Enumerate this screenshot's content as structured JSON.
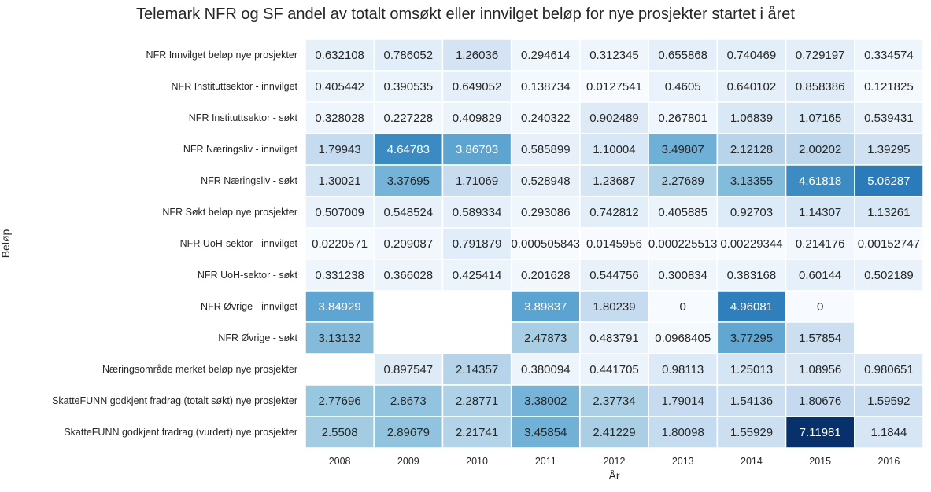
{
  "chart_data": {
    "type": "heatmap",
    "title": "Telemark NFR og SF andel av totalt omsøkt eller innvilget beløp for nye prosjekter startet i året",
    "xlabel": "År",
    "ylabel": "Beløp",
    "x_categories": [
      "2008",
      "2009",
      "2010",
      "2011",
      "2012",
      "2013",
      "2014",
      "2015",
      "2016"
    ],
    "y_categories": [
      "NFR Innvilget beløp nye prosjekter",
      "NFR Instituttsektor - innvilget",
      "NFR Instituttsektor - søkt",
      "NFR Næringsliv - innvilget",
      "NFR Næringsliv - søkt",
      "NFR Søkt beløp nye prosjekter",
      "NFR UoH-sektor - innvilget",
      "NFR UoH-sektor - søkt",
      "NFR Øvrige - innvilget",
      "NFR Øvrige - søkt",
      "Næringsområde merket beløp nye prosjekter",
      "SkatteFUNN godkjent fradrag (totalt søkt) nye prosjekter",
      "SkatteFUNN godkjent fradrag (vurdert) nye prosjekter"
    ],
    "values": [
      [
        0.632108,
        0.786052,
        1.26036,
        0.294614,
        0.312345,
        0.655868,
        0.740469,
        0.729197,
        0.334574
      ],
      [
        0.405442,
        0.390535,
        0.649052,
        0.138734,
        0.0127541,
        0.4605,
        0.640102,
        0.858386,
        0.121825
      ],
      [
        0.328028,
        0.227228,
        0.409829,
        0.240322,
        0.902489,
        0.267801,
        1.06839,
        1.07165,
        0.539431
      ],
      [
        1.79943,
        4.64783,
        3.86703,
        0.585899,
        1.10004,
        3.49807,
        2.12128,
        2.00202,
        1.39295
      ],
      [
        1.30021,
        3.37695,
        1.71069,
        0.528948,
        1.23687,
        2.27689,
        3.13355,
        4.61818,
        5.06287
      ],
      [
        0.507009,
        0.548524,
        0.589334,
        0.293086,
        0.742812,
        0.405885,
        0.92703,
        1.14307,
        1.13261
      ],
      [
        0.0220571,
        0.209087,
        0.791879,
        0.000505843,
        0.0145956,
        0.000225513,
        0.00229344,
        0.214176,
        0.00152747
      ],
      [
        0.331238,
        0.366028,
        0.425414,
        0.201628,
        0.544756,
        0.300834,
        0.383168,
        0.60144,
        0.502189
      ],
      [
        3.84929,
        null,
        null,
        3.89837,
        1.80239,
        0,
        4.96081,
        0,
        null
      ],
      [
        3.13132,
        null,
        null,
        2.47873,
        0.483791,
        0.0968405,
        3.77295,
        1.57854,
        null
      ],
      [
        null,
        0.897547,
        2.14357,
        0.380094,
        0.441705,
        0.98113,
        1.25013,
        1.08956,
        0.980651
      ],
      [
        2.77696,
        2.8673,
        2.28771,
        3.38002,
        2.37734,
        1.79014,
        1.54136,
        1.80676,
        1.59592
      ],
      [
        2.5508,
        2.89679,
        2.21741,
        3.45854,
        2.41229,
        1.80098,
        1.55929,
        7.11981,
        1.1844
      ]
    ],
    "labels": [
      [
        "0.632108",
        "0.786052",
        "1.26036",
        "0.294614",
        "0.312345",
        "0.655868",
        "0.740469",
        "0.729197",
        "0.334574"
      ],
      [
        "0.405442",
        "0.390535",
        "0.649052",
        "0.138734",
        "0.0127541",
        "0.4605",
        "0.640102",
        "0.858386",
        "0.121825"
      ],
      [
        "0.328028",
        "0.227228",
        "0.409829",
        "0.240322",
        "0.902489",
        "0.267801",
        "1.06839",
        "1.07165",
        "0.539431"
      ],
      [
        "1.79943",
        "4.64783",
        "3.86703",
        "0.585899",
        "1.10004",
        "3.49807",
        "2.12128",
        "2.00202",
        "1.39295"
      ],
      [
        "1.30021",
        "3.37695",
        "1.71069",
        "0.528948",
        "1.23687",
        "2.27689",
        "3.13355",
        "4.61818",
        "5.06287"
      ],
      [
        "0.507009",
        "0.548524",
        "0.589334",
        "0.293086",
        "0.742812",
        "0.405885",
        "0.92703",
        "1.14307",
        "1.13261"
      ],
      [
        "0.0220571",
        "0.209087",
        "0.791879",
        "0.000505843",
        "0.0145956",
        "0.000225513",
        "0.00229344",
        "0.214176",
        "0.00152747"
      ],
      [
        "0.331238",
        "0.366028",
        "0.425414",
        "0.201628",
        "0.544756",
        "0.300834",
        "0.383168",
        "0.60144",
        "0.502189"
      ],
      [
        "3.84929",
        "",
        "",
        "3.89837",
        "1.80239",
        "0",
        "4.96081",
        "0",
        ""
      ],
      [
        "3.13132",
        "",
        "",
        "2.47873",
        "0.483791",
        "0.0968405",
        "3.77295",
        "1.57854",
        ""
      ],
      [
        "",
        "0.897547",
        "2.14357",
        "0.380094",
        "0.441705",
        "0.98113",
        "1.25013",
        "1.08956",
        "0.980651"
      ],
      [
        "2.77696",
        "2.8673",
        "2.28771",
        "3.38002",
        "2.37734",
        "1.79014",
        "1.54136",
        "1.80676",
        "1.59592"
      ],
      [
        "2.5508",
        "2.89679",
        "2.21741",
        "3.45854",
        "2.41229",
        "1.80098",
        "1.55929",
        "7.11981",
        "1.1844"
      ]
    ],
    "colormap": "Blues",
    "value_range": [
      0,
      7.11981
    ],
    "colorbar": false,
    "grid": false,
    "cell_border_color": "#ffffff",
    "text_color_dark": "#262626",
    "text_color_light": "#ffffff"
  }
}
